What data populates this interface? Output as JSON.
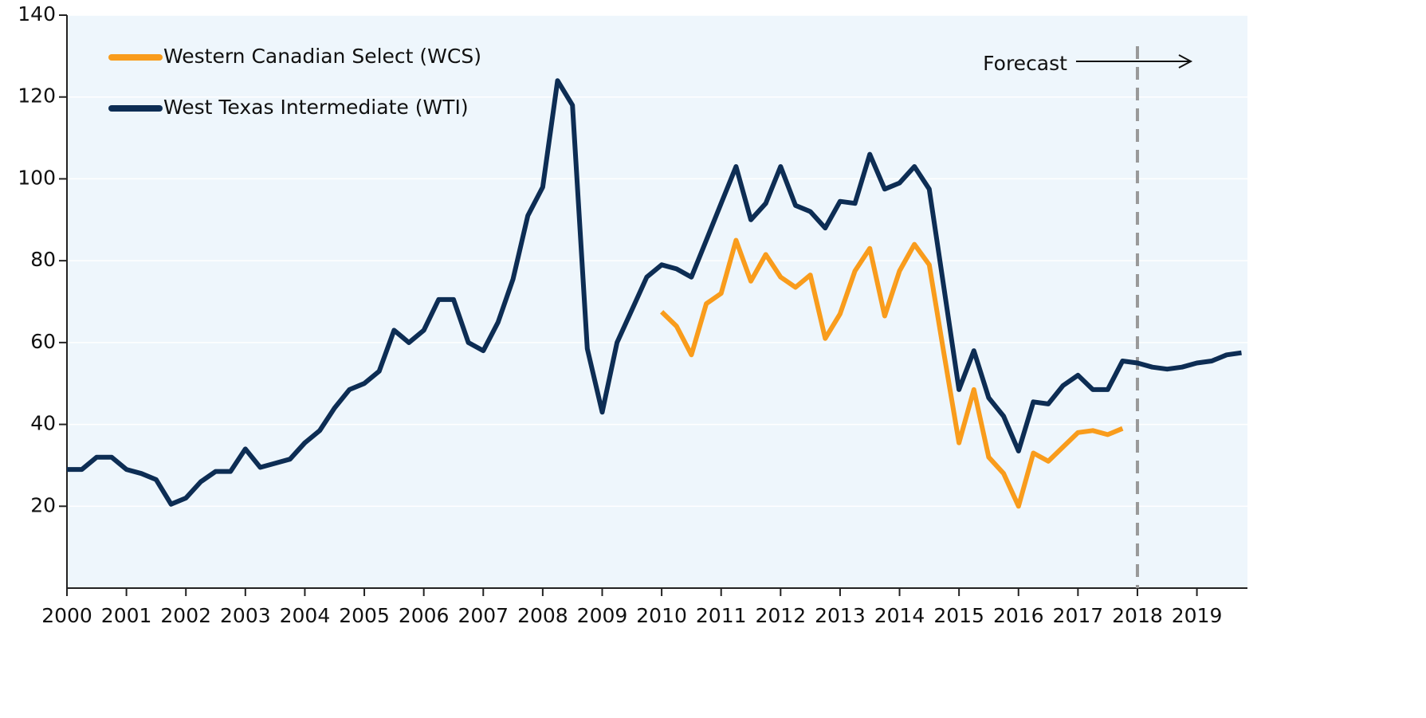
{
  "chart_data": {
    "type": "line",
    "x": [
      2000,
      2000.25,
      2000.5,
      2000.75,
      2001,
      2001.25,
      2001.5,
      2001.75,
      2002,
      2002.25,
      2002.5,
      2002.75,
      2003,
      2003.25,
      2003.5,
      2003.75,
      2004,
      2004.25,
      2004.5,
      2004.75,
      2005,
      2005.25,
      2005.5,
      2005.75,
      2006,
      2006.25,
      2006.5,
      2006.75,
      2007,
      2007.25,
      2007.5,
      2007.75,
      2008,
      2008.25,
      2008.5,
      2008.75,
      2009,
      2009.25,
      2009.5,
      2009.75,
      2010,
      2010.25,
      2010.5,
      2010.75,
      2011,
      2011.25,
      2011.5,
      2011.75,
      2012,
      2012.25,
      2012.5,
      2012.75,
      2013,
      2013.25,
      2013.5,
      2013.75,
      2014,
      2014.25,
      2014.5,
      2014.75,
      2015,
      2015.25,
      2015.5,
      2015.75,
      2016,
      2016.25,
      2016.5,
      2016.75,
      2017,
      2017.25,
      2017.5,
      2017.75,
      2018,
      2018.25,
      2018.5,
      2018.75,
      2019,
      2019.25,
      2019.5,
      2019.75
    ],
    "series": [
      {
        "name": "Western Canadian Select (WCS)",
        "color": "#f99c1c",
        "values": [
          null,
          null,
          null,
          null,
          null,
          null,
          null,
          null,
          null,
          null,
          null,
          null,
          null,
          null,
          null,
          null,
          null,
          null,
          null,
          null,
          null,
          null,
          null,
          null,
          null,
          null,
          null,
          null,
          null,
          null,
          null,
          null,
          null,
          null,
          null,
          null,
          null,
          null,
          null,
          null,
          67.5,
          64,
          57,
          69.5,
          72,
          85,
          75,
          81.5,
          76,
          73.5,
          76.5,
          61,
          67,
          77.5,
          83,
          66.5,
          77.5,
          84,
          79,
          57,
          35.5,
          48.5,
          32,
          28,
          20,
          33,
          31,
          34.5,
          38,
          38.5,
          37.5,
          39,
          null,
          null,
          null,
          null,
          null,
          null,
          null,
          null
        ]
      },
      {
        "name": "West Texas Intermediate (WTI)",
        "color": "#0d2d54",
        "values": [
          29,
          29,
          32,
          32,
          29,
          28,
          26.5,
          20.5,
          22,
          26,
          28.5,
          28.5,
          34,
          29.5,
          30.5,
          31.5,
          35.5,
          38.5,
          44,
          48.5,
          50,
          53,
          63,
          60,
          63,
          70.5,
          70.5,
          60,
          58,
          65,
          75.5,
          91,
          98,
          124,
          118,
          58.5,
          43,
          60,
          68,
          76,
          79,
          78,
          76,
          85,
          94,
          103,
          90,
          94,
          103,
          93.5,
          92,
          88,
          94.5,
          94,
          106,
          97.5,
          99,
          103,
          97.5,
          73,
          48.5,
          58,
          46.5,
          42,
          33.5,
          45.5,
          45,
          49.5,
          52,
          48.5,
          48.5,
          55.5,
          55,
          54,
          53.5,
          54,
          55,
          55.5,
          57,
          57.5
        ]
      }
    ],
    "xlim": [
      2000,
      2019.85
    ],
    "xticks": [
      2000,
      2001,
      2002,
      2003,
      2004,
      2005,
      2006,
      2007,
      2008,
      2009,
      2010,
      2011,
      2012,
      2013,
      2014,
      2015,
      2016,
      2017,
      2018,
      2019
    ],
    "ylim": [
      0,
      140
    ],
    "yticks": [
      20,
      40,
      60,
      80,
      100,
      120,
      140
    ],
    "grid": true,
    "legend": "upper left",
    "annotation": "Forecast",
    "forecast_line": 2018
  }
}
